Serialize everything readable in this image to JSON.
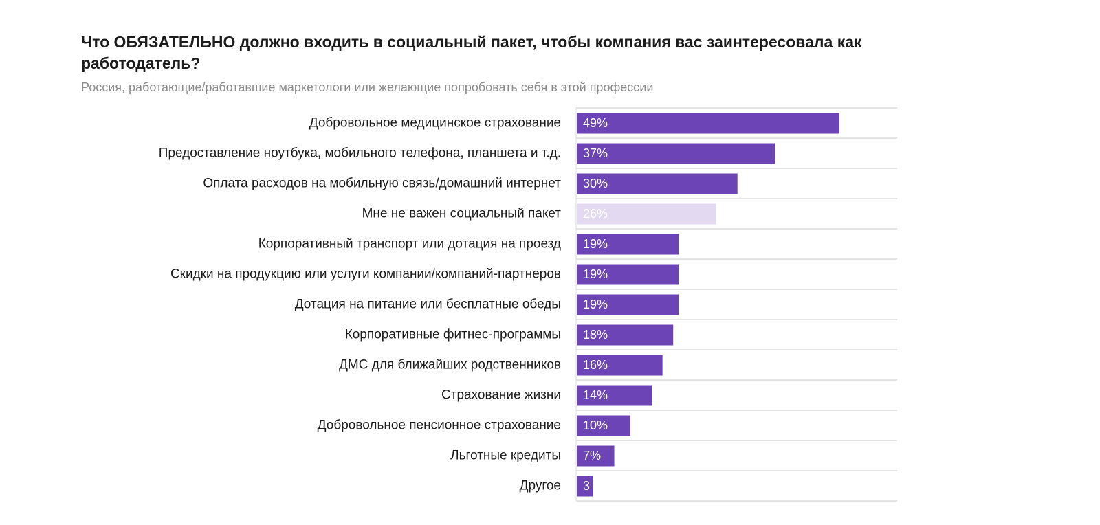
{
  "chart_data": {
    "type": "bar",
    "orientation": "horizontal",
    "title": "Что ОБЯЗАТЕЛЬНО должно входить в социальный пакет, чтобы компания вас заинтересовала как работодатель?",
    "subtitle": "Россия, работающие/работавшие маркетологи или желающие попробовать себя в этой профессии",
    "categories": [
      "Добровольное медицинское страхование",
      "Предоставление ноутбука, мобильного телефона, планшета и т.д.",
      "Оплата расходов на мобильную связь/домашний интернет",
      "Мне не важен социальный пакет",
      "Корпоративный транспорт или дотация на проезд",
      "Скидки на продукцию или услуги компании/компаний-партнеров",
      "Дотация на питание или бесплатные обеды",
      "Корпоративные фитнес-программы",
      "ДМС для ближайших родственников",
      "Страхование жизни",
      "Добровольное пенсионное страхование",
      "Льготные кредиты",
      "Другое"
    ],
    "values": [
      49,
      37,
      30,
      26,
      19,
      19,
      19,
      18,
      16,
      14,
      10,
      7,
      3
    ],
    "value_labels": [
      "49%",
      "37%",
      "30%",
      "26%",
      "19%",
      "19%",
      "19%",
      "18%",
      "16%",
      "14%",
      "10%",
      "7%",
      "3"
    ],
    "highlight_index": 3,
    "xlim": [
      0,
      60
    ],
    "grid": "horizontal separators between rows",
    "colors": {
      "bar": "#6d44b5",
      "bar_highlight": "#e3daf1",
      "grid": "#dcdcdc"
    }
  }
}
